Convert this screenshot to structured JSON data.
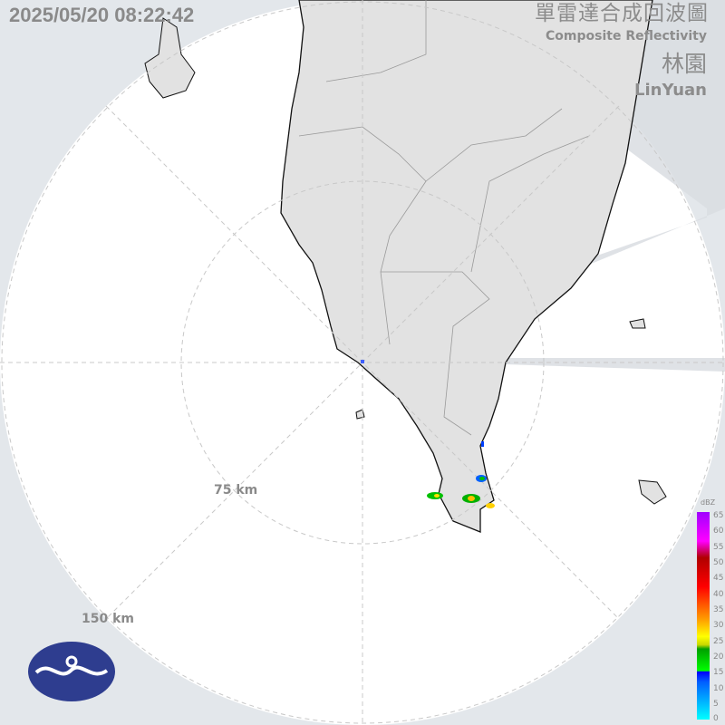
{
  "header": {
    "timestamp": "2025/05/20 08:22:42",
    "title_zh": "單雷達合成回波圖",
    "title_en": "Composite Reflectivity",
    "station_zh": "林園",
    "station_en": "LinYuan"
  },
  "range_rings": [
    {
      "label": "75 km"
    },
    {
      "label": "150 km"
    }
  ],
  "legend": {
    "unit": "dBZ",
    "ticks": [
      "65",
      "60",
      "55",
      "50",
      "45",
      "40",
      "35",
      "30",
      "25",
      "20",
      "15",
      "10",
      "5",
      "0"
    ]
  },
  "colors": {
    "background": "#e3e7eb",
    "radar_disc": "#ffffff",
    "land": "#e2e2e2",
    "logo": "#2e3d8f"
  },
  "logo": {
    "name": "cwa-logo"
  }
}
